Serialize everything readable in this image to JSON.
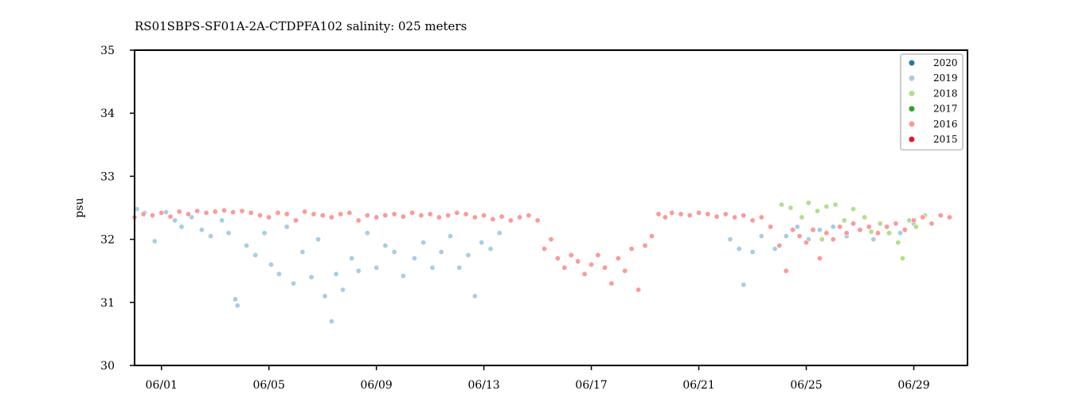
{
  "chart_data": {
    "type": "scatter",
    "title": "RS01SBPS-SF01A-2A-CTDPFA102 salinity: 025 meters",
    "xlabel": "",
    "ylabel": "psu",
    "ylim": [
      30,
      35
    ],
    "yticks": [
      "30",
      "31",
      "32",
      "33",
      "34",
      "35"
    ],
    "xlim": [
      "05-31 00:00",
      "07-01 00:00"
    ],
    "xticks": [
      "06/01",
      "06/05",
      "06/09",
      "06/13",
      "06/17",
      "06/21",
      "06/25",
      "06/29"
    ],
    "grid": false,
    "legend_position": "top-right",
    "series": [
      {
        "name": "2020",
        "color": "#1f77b4",
        "points": []
      },
      {
        "name": "2019",
        "color": "#a6cee3",
        "points": [
          [
            "05-31 02:00",
            32.48
          ],
          [
            "05-31 09:00",
            32.42
          ],
          [
            "05-31 18:00",
            31.97
          ],
          [
            "06-01 04:00",
            32.43
          ],
          [
            "06-01 12:00",
            32.3
          ],
          [
            "06-01 18:00",
            32.2
          ],
          [
            "06-02 03:00",
            32.35
          ],
          [
            "06-02 12:00",
            32.15
          ],
          [
            "06-02 20:00",
            32.05
          ],
          [
            "06-03 06:00",
            32.3
          ],
          [
            "06-03 12:00",
            32.1
          ],
          [
            "06-03 18:00",
            31.05
          ],
          [
            "06-03 20:00",
            30.95
          ],
          [
            "06-04 04:00",
            31.9
          ],
          [
            "06-04 12:00",
            31.75
          ],
          [
            "06-04 20:00",
            32.1
          ],
          [
            "06-05 02:00",
            31.6
          ],
          [
            "06-05 09:00",
            31.45
          ],
          [
            "06-05 16:00",
            32.2
          ],
          [
            "06-05 22:00",
            31.3
          ],
          [
            "06-06 06:00",
            31.8
          ],
          [
            "06-06 14:00",
            31.4
          ],
          [
            "06-06 20:00",
            32.0
          ],
          [
            "06-07 02:00",
            31.1
          ],
          [
            "06-07 08:00",
            30.7
          ],
          [
            "06-07 12:00",
            31.45
          ],
          [
            "06-07 18:00",
            31.2
          ],
          [
            "06-08 02:00",
            31.7
          ],
          [
            "06-08 08:00",
            31.5
          ],
          [
            "06-08 16:00",
            32.1
          ],
          [
            "06-09 00:00",
            31.55
          ],
          [
            "06-09 08:00",
            31.9
          ],
          [
            "06-09 16:00",
            31.8
          ],
          [
            "06-10 00:00",
            31.42
          ],
          [
            "06-10 10:00",
            31.7
          ],
          [
            "06-10 18:00",
            31.95
          ],
          [
            "06-11 02:00",
            31.55
          ],
          [
            "06-11 10:00",
            31.8
          ],
          [
            "06-11 18:00",
            32.05
          ],
          [
            "06-12 02:00",
            31.55
          ],
          [
            "06-12 10:00",
            31.75
          ],
          [
            "06-12 16:00",
            31.1
          ],
          [
            "06-12 22:00",
            31.95
          ],
          [
            "06-13 06:00",
            31.85
          ],
          [
            "06-13 14:00",
            32.1
          ],
          [
            "06-22 04:00",
            32.0
          ],
          [
            "06-22 12:00",
            31.85
          ],
          [
            "06-22 16:00",
            31.28
          ],
          [
            "06-23 00:00",
            31.8
          ],
          [
            "06-23 08:00",
            32.05
          ],
          [
            "06-23 20:00",
            31.85
          ],
          [
            "06-24 06:00",
            32.05
          ],
          [
            "06-24 16:00",
            32.2
          ],
          [
            "06-25 02:00",
            32.0
          ],
          [
            "06-25 12:00",
            32.15
          ],
          [
            "06-26 00:00",
            32.2
          ],
          [
            "06-26 12:00",
            32.05
          ],
          [
            "06-27 00:00",
            32.15
          ],
          [
            "06-27 12:00",
            32.0
          ],
          [
            "06-28 00:00",
            32.2
          ],
          [
            "06-28 12:00",
            32.1
          ],
          [
            "06-29 00:00",
            32.25
          ]
        ]
      },
      {
        "name": "2018",
        "color": "#b2df8a",
        "points": [
          [
            "06-24 02:00",
            32.55
          ],
          [
            "06-24 10:00",
            32.5
          ],
          [
            "06-24 20:00",
            32.35
          ],
          [
            "06-25 02:00",
            32.58
          ],
          [
            "06-25 10:00",
            32.45
          ],
          [
            "06-25 14:00",
            32.0
          ],
          [
            "06-25 18:00",
            32.52
          ],
          [
            "06-26 02:00",
            32.55
          ],
          [
            "06-26 10:00",
            32.3
          ],
          [
            "06-26 18:00",
            32.48
          ],
          [
            "06-27 04:00",
            32.35
          ],
          [
            "06-27 10:00",
            32.12
          ],
          [
            "06-27 18:00",
            32.25
          ],
          [
            "06-28 02:00",
            32.1
          ],
          [
            "06-28 10:00",
            31.95
          ],
          [
            "06-28 14:00",
            31.7
          ],
          [
            "06-28 20:00",
            32.3
          ],
          [
            "06-29 02:00",
            32.2
          ],
          [
            "06-29 10:00",
            32.38
          ]
        ]
      },
      {
        "name": "2017",
        "color": "#33a02c",
        "points": []
      },
      {
        "name": "2016",
        "color": "#fb9a99",
        "points": [
          [
            "05-31 00:00",
            32.35
          ],
          [
            "05-31 08:00",
            32.4
          ],
          [
            "05-31 16:00",
            32.38
          ],
          [
            "06-01 00:00",
            32.42
          ],
          [
            "06-01 08:00",
            32.36
          ],
          [
            "06-01 16:00",
            32.44
          ],
          [
            "06-02 00:00",
            32.4
          ],
          [
            "06-02 08:00",
            32.45
          ],
          [
            "06-02 16:00",
            32.42
          ],
          [
            "06-03 00:00",
            32.44
          ],
          [
            "06-03 08:00",
            32.46
          ],
          [
            "06-03 16:00",
            32.43
          ],
          [
            "06-04 00:00",
            32.45
          ],
          [
            "06-04 08:00",
            32.42
          ],
          [
            "06-04 16:00",
            32.38
          ],
          [
            "06-05 00:00",
            32.35
          ],
          [
            "06-05 08:00",
            32.42
          ],
          [
            "06-05 16:00",
            32.4
          ],
          [
            "06-06 00:00",
            32.3
          ],
          [
            "06-06 08:00",
            32.44
          ],
          [
            "06-06 16:00",
            32.4
          ],
          [
            "06-07 00:00",
            32.38
          ],
          [
            "06-07 08:00",
            32.35
          ],
          [
            "06-07 16:00",
            32.4
          ],
          [
            "06-08 00:00",
            32.42
          ],
          [
            "06-08 08:00",
            32.3
          ],
          [
            "06-08 16:00",
            32.38
          ],
          [
            "06-09 00:00",
            32.35
          ],
          [
            "06-09 08:00",
            32.38
          ],
          [
            "06-09 16:00",
            32.4
          ],
          [
            "06-10 00:00",
            32.36
          ],
          [
            "06-10 08:00",
            32.42
          ],
          [
            "06-10 16:00",
            32.38
          ],
          [
            "06-11 00:00",
            32.4
          ],
          [
            "06-11 08:00",
            32.35
          ],
          [
            "06-11 16:00",
            32.38
          ],
          [
            "06-12 00:00",
            32.42
          ],
          [
            "06-12 08:00",
            32.4
          ],
          [
            "06-12 16:00",
            32.35
          ],
          [
            "06-13 00:00",
            32.38
          ],
          [
            "06-13 08:00",
            32.32
          ],
          [
            "06-13 16:00",
            32.36
          ],
          [
            "06-14 00:00",
            32.3
          ],
          [
            "06-14 08:00",
            32.35
          ],
          [
            "06-14 16:00",
            32.38
          ],
          [
            "06-15 00:00",
            32.3
          ],
          [
            "06-15 06:00",
            31.85
          ],
          [
            "06-15 12:00",
            32.0
          ],
          [
            "06-15 18:00",
            31.7
          ],
          [
            "06-16 00:00",
            31.55
          ],
          [
            "06-16 06:00",
            31.75
          ],
          [
            "06-16 12:00",
            31.65
          ],
          [
            "06-16 18:00",
            31.45
          ],
          [
            "06-17 00:00",
            31.6
          ],
          [
            "06-17 06:00",
            31.75
          ],
          [
            "06-17 12:00",
            31.55
          ],
          [
            "06-17 18:00",
            31.3
          ],
          [
            "06-18 00:00",
            31.7
          ],
          [
            "06-18 06:00",
            31.5
          ],
          [
            "06-18 12:00",
            31.85
          ],
          [
            "06-18 18:00",
            31.2
          ],
          [
            "06-19 00:00",
            31.9
          ],
          [
            "06-19 06:00",
            32.05
          ],
          [
            "06-19 12:00",
            32.4
          ],
          [
            "06-19 18:00",
            32.35
          ],
          [
            "06-20 00:00",
            32.42
          ],
          [
            "06-20 08:00",
            32.4
          ],
          [
            "06-20 16:00",
            32.38
          ],
          [
            "06-21 00:00",
            32.42
          ],
          [
            "06-21 08:00",
            32.4
          ],
          [
            "06-21 16:00",
            32.36
          ],
          [
            "06-22 00:00",
            32.4
          ],
          [
            "06-22 08:00",
            32.35
          ],
          [
            "06-22 16:00",
            32.38
          ],
          [
            "06-23 00:00",
            32.3
          ],
          [
            "06-23 08:00",
            32.35
          ],
          [
            "06-23 16:00",
            32.2
          ],
          [
            "06-24 00:00",
            31.9
          ],
          [
            "06-24 06:00",
            31.5
          ],
          [
            "06-24 12:00",
            32.15
          ],
          [
            "06-24 18:00",
            32.05
          ],
          [
            "06-25 00:00",
            31.95
          ],
          [
            "06-25 06:00",
            32.15
          ],
          [
            "06-25 12:00",
            31.7
          ],
          [
            "06-25 18:00",
            32.1
          ],
          [
            "06-26 00:00",
            32.0
          ],
          [
            "06-26 06:00",
            32.2
          ],
          [
            "06-26 12:00",
            32.1
          ],
          [
            "06-26 18:00",
            32.25
          ],
          [
            "06-27 00:00",
            32.15
          ],
          [
            "06-27 08:00",
            32.2
          ],
          [
            "06-27 16:00",
            32.1
          ],
          [
            "06-28 00:00",
            32.2
          ],
          [
            "06-28 08:00",
            32.25
          ],
          [
            "06-28 16:00",
            32.15
          ],
          [
            "06-29 00:00",
            32.3
          ],
          [
            "06-29 08:00",
            32.35
          ],
          [
            "06-29 16:00",
            32.25
          ],
          [
            "06-30 00:00",
            32.38
          ],
          [
            "06-30 08:00",
            32.35
          ]
        ]
      },
      {
        "name": "2015",
        "color": "#e31a1c",
        "points": []
      }
    ]
  }
}
